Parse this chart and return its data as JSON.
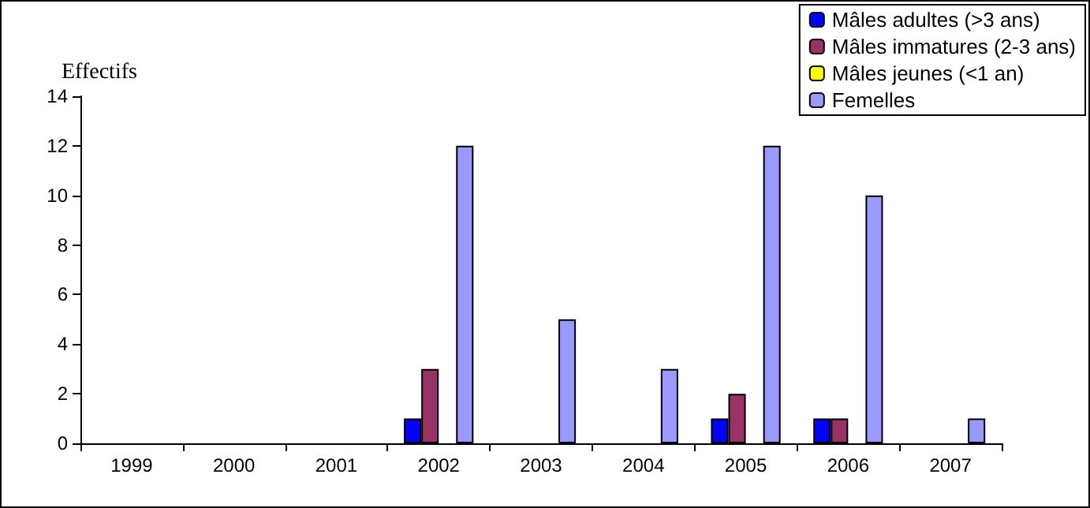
{
  "chart_data": {
    "type": "bar",
    "ylabel": "Effectifs",
    "categories": [
      "1999",
      "2000",
      "2001",
      "2002",
      "2003",
      "2004",
      "2005",
      "2006",
      "2007"
    ],
    "series": [
      {
        "name": "Mâles adultes (>3 ans)",
        "color": "#0000ff",
        "values": [
          null,
          null,
          null,
          1,
          null,
          null,
          1,
          1,
          null
        ]
      },
      {
        "name": "Mâles immatures (2-3 ans)",
        "color": "#993366",
        "values": [
          null,
          null,
          null,
          3,
          null,
          null,
          2,
          1,
          null
        ]
      },
      {
        "name": "Mâles jeunes (<1 an)",
        "color": "#ffff00",
        "values": [
          null,
          null,
          null,
          null,
          null,
          null,
          null,
          null,
          null
        ]
      },
      {
        "name": "Femelles",
        "color": "#9999ff",
        "values": [
          null,
          null,
          null,
          12,
          5,
          3,
          12,
          10,
          1
        ]
      }
    ],
    "ylim": [
      0,
      14
    ],
    "yticks": [
      0,
      2,
      4,
      6,
      8,
      10,
      12,
      14
    ],
    "grid": false,
    "legend": "top right"
  }
}
